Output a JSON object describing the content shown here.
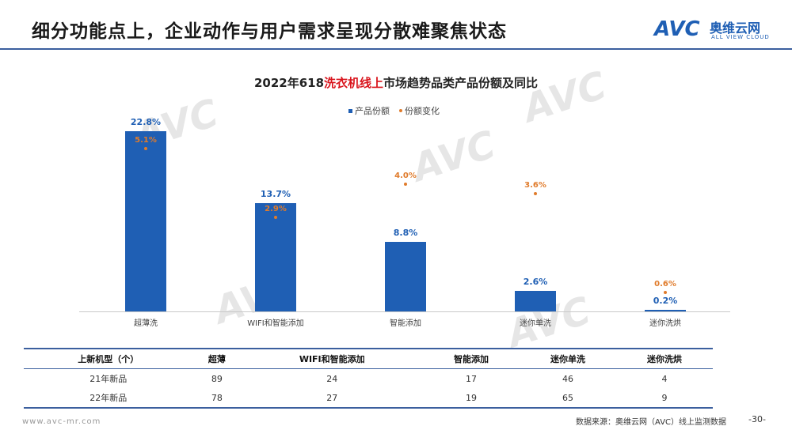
{
  "header": {
    "title": "细分功能点上，企业动作与用户需求呈现分散难聚焦状态",
    "logo_avc": "AVC",
    "logo_cn": "奥维云网",
    "logo_en": "ALL VIEW CLOUD"
  },
  "chart_data": {
    "type": "bar",
    "title_prefix": "2022年618",
    "title_highlight": "洗衣机线上",
    "title_suffix": "市场趋势品类产品份额及同比",
    "categories": [
      "超薄洗",
      "WIFI和智能添加",
      "智能添加",
      "迷你单洗",
      "迷你洗烘"
    ],
    "series": [
      {
        "name": "产品份额",
        "type": "bar",
        "values": [
          22.8,
          13.7,
          8.8,
          2.6,
          0.2
        ],
        "labels": [
          "22.8%",
          "13.7%",
          "8.8%",
          "2.6%",
          "0.2%"
        ],
        "color": "#1f5fb4"
      },
      {
        "name": "份额变化",
        "type": "scatter",
        "values": [
          5.1,
          2.9,
          4.0,
          3.6,
          0.6
        ],
        "labels": [
          "5.1%",
          "2.9%",
          "4.0%",
          "3.6%",
          "0.6%"
        ],
        "color": "#e07b2b"
      }
    ],
    "ylim": [
      0,
      24
    ],
    "legend_position": "top-center",
    "grid": false
  },
  "table": {
    "headers": [
      "上新机型（个）",
      "超薄",
      "WIFI和智能添加",
      "智能添加",
      "迷你单洗",
      "迷你洗烘"
    ],
    "rows": [
      [
        "21年新品",
        "89",
        "24",
        "17",
        "46",
        "4"
      ],
      [
        "22年新品",
        "78",
        "27",
        "19",
        "65",
        "9"
      ]
    ]
  },
  "footer": {
    "url": "www.avc-mr.com",
    "source": "数据来源：奥维云网（AVC）线上监测数据",
    "page": "-30-"
  },
  "watermark": {
    "text": "AVC"
  }
}
